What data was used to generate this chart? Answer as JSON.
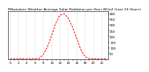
{
  "title": "Milwaukee Weather Average Solar Radiation per Hour W/m2 (Last 24 Hours)",
  "hours": [
    0,
    1,
    2,
    3,
    4,
    5,
    6,
    7,
    8,
    9,
    10,
    11,
    12,
    13,
    14,
    15,
    16,
    17,
    18,
    19,
    20,
    21,
    22,
    23
  ],
  "values": [
    0,
    0,
    0,
    0,
    0,
    0,
    0,
    5,
    40,
    110,
    210,
    320,
    390,
    400,
    360,
    280,
    180,
    80,
    20,
    2,
    0,
    0,
    0,
    0
  ],
  "line_color": "#ff0000",
  "bg_color": "#ffffff",
  "grid_color": "#bbbbbb",
  "ylim": [
    0,
    420
  ],
  "xlim": [
    -0.5,
    23.5
  ],
  "title_fontsize": 3.2,
  "tick_fontsize": 2.8,
  "y_ticks": [
    50,
    100,
    150,
    200,
    250,
    300,
    350,
    400
  ],
  "y_tick_labels": [
    "50",
    "100",
    "150",
    "200",
    "250",
    "300",
    "350",
    "400"
  ],
  "x_grid_positions": [
    0,
    2,
    4,
    6,
    8,
    10,
    12,
    14,
    16,
    18,
    20,
    22
  ]
}
